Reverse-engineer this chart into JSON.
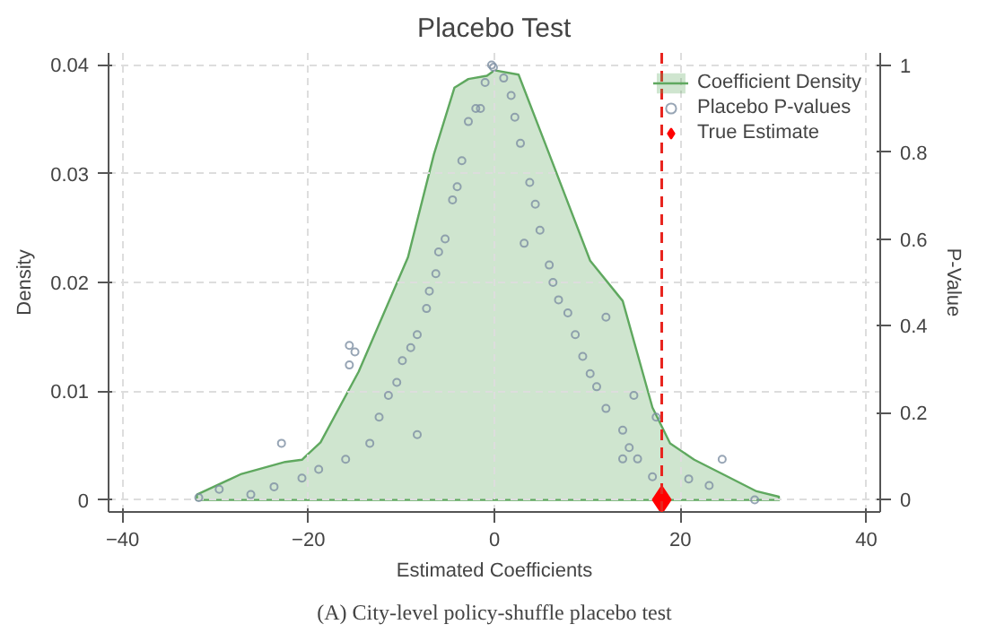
{
  "chart_data": {
    "type": "area",
    "title": "Placebo Test",
    "xlabel": "Estimated Coefficients",
    "ylabel": "Density",
    "y2label": "P-Value",
    "annotations": [
      "(A) City-level policy-shuffle placebo test"
    ],
    "xlim": [
      -41.5,
      41.5
    ],
    "xticks": [
      -40,
      -20,
      0,
      20,
      40
    ],
    "ylim": [
      -0.0011,
      0.0411
    ],
    "yticks": [
      0,
      0.01,
      0.02,
      0.03,
      0.04
    ],
    "y2lim": [
      -0.028,
      1.028
    ],
    "y2ticks": [
      0,
      0.2,
      0.4,
      0.6,
      0.8,
      1
    ],
    "grid": true,
    "legend": "top right",
    "ref_lines": [
      {
        "axis": "x",
        "value": 18,
        "color": "#e8251f",
        "line_style": "dashed"
      }
    ],
    "series": [
      {
        "name": "Coefficient Density",
        "color": "#5fa85f",
        "x": [
          -32,
          -27.2,
          -22.5,
          -20.7,
          -18.7,
          -14.6,
          -9.3,
          -6.5,
          -4.3,
          -2.8,
          -0.8,
          0,
          2.6,
          5.9,
          10.3,
          13.8,
          17,
          18.9,
          21.5,
          24.5,
          28.2,
          30.6
        ],
        "values": [
          0.0005,
          0.0024,
          0.0035,
          0.0037,
          0.0053,
          0.0118,
          0.0223,
          0.0318,
          0.0379,
          0.0387,
          0.039,
          0.0395,
          0.0391,
          0.0318,
          0.022,
          0.0183,
          0.0085,
          0.0052,
          0.0037,
          0.0024,
          0.0008,
          0.0003
        ]
      },
      {
        "name": "Placebo P-values",
        "type": "scatter",
        "axis": "y2",
        "marker": "circle",
        "color": "#7d8fa3",
        "x": [
          -0.3,
          -1,
          -1.5,
          -2.8,
          -3.5,
          -4.5,
          -5.3,
          -6.3,
          -7.3,
          -8.3,
          -9.9,
          -11.4,
          -12.4,
          -13.4,
          -16,
          -18.9,
          -20.7,
          -23.7,
          -26.2,
          -29.6,
          -31.8,
          -15.6,
          -15,
          -22.9,
          -15.6,
          -8.3,
          -2,
          -4,
          -6,
          -7,
          -9,
          -10.5,
          -0.1,
          1.8,
          2.8,
          3.8,
          4.9,
          5.9,
          6.9,
          8.7,
          10.3,
          12,
          13.8,
          15.4,
          17,
          20.9,
          23.1,
          24.5,
          28,
          3.2,
          7.9,
          12,
          15,
          17.4,
          13.8,
          1,
          2.2,
          4.4,
          6.3,
          9.5,
          11,
          14.5
        ],
        "values": [
          1.0,
          0.96,
          0.9,
          0.87,
          0.78,
          0.69,
          0.6,
          0.52,
          0.44,
          0.38,
          0.32,
          0.24,
          0.19,
          0.13,
          0.093,
          0.07,
          0.05,
          0.03,
          0.012,
          0.024,
          0.005,
          0.355,
          0.34,
          0.13,
          0.31,
          0.15,
          0.9,
          0.72,
          0.57,
          0.48,
          0.35,
          0.27,
          0.995,
          0.93,
          0.82,
          0.73,
          0.62,
          0.54,
          0.46,
          0.38,
          0.29,
          0.21,
          0.16,
          0.094,
          0.053,
          0.048,
          0.033,
          0.093,
          0.0,
          0.59,
          0.43,
          0.42,
          0.24,
          0.19,
          0.094,
          0.97,
          0.88,
          0.68,
          0.5,
          0.33,
          0.26,
          0.12
        ]
      },
      {
        "name": "True Estimate",
        "type": "scatter",
        "axis": "y2",
        "marker": "diamond",
        "color": "#ff0000",
        "x": [
          18
        ],
        "values": [
          0
        ]
      }
    ]
  }
}
